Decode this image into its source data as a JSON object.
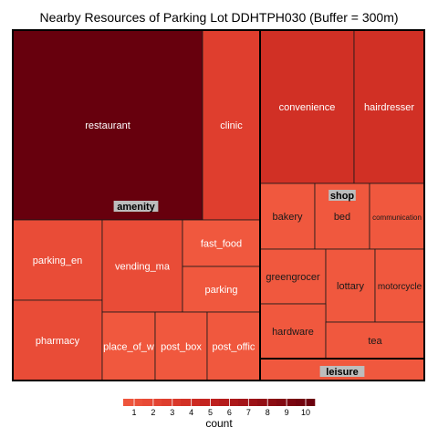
{
  "chart_data": {
    "type": "treemap",
    "title": "Nearby Resources of Parking Lot DDHTPH030 (Buffer = 300m)",
    "groups": [
      {
        "name": "amenity",
        "items": [
          {
            "label": "restaurant",
            "value": 10
          },
          {
            "label": "clinic",
            "value": 3
          },
          {
            "label": "parking_en",
            "value": 2
          },
          {
            "label": "pharmacy",
            "value": 2
          },
          {
            "label": "vending_ma",
            "value": 2
          },
          {
            "label": "fast_food",
            "value": 1
          },
          {
            "label": "parking",
            "value": 1
          },
          {
            "label": "place_of_w",
            "value": 1
          },
          {
            "label": "post_box",
            "value": 1
          },
          {
            "label": "post_offic",
            "value": 1
          }
        ]
      },
      {
        "name": "shop",
        "items": [
          {
            "label": "convenience",
            "value": 4
          },
          {
            "label": "hairdresser",
            "value": 4
          },
          {
            "label": "bakery",
            "value": 1
          },
          {
            "label": "bed",
            "value": 1
          },
          {
            "label": "communication",
            "value": 1
          },
          {
            "label": "greengrocer",
            "value": 1
          },
          {
            "label": "lottary",
            "value": 1
          },
          {
            "label": "motorcycle",
            "value": 1
          },
          {
            "label": "hardware",
            "value": 1
          },
          {
            "label": "tea",
            "value": 1
          }
        ]
      },
      {
        "name": "leisure",
        "items": []
      }
    ],
    "legend": {
      "title": "count",
      "ticks": [
        "1",
        "2",
        "3",
        "4",
        "5",
        "6",
        "7",
        "8",
        "9",
        "10"
      ],
      "position": "bottom"
    },
    "colors": {
      "low": "#f0583e",
      "high": "#67000d",
      "stops": [
        "#f0583e",
        "#e84a36",
        "#dc3b2c",
        "#cc2a22",
        "#b91c1c",
        "#a41519",
        "#8f0d14",
        "#7a0610",
        "#67000d"
      ]
    }
  }
}
